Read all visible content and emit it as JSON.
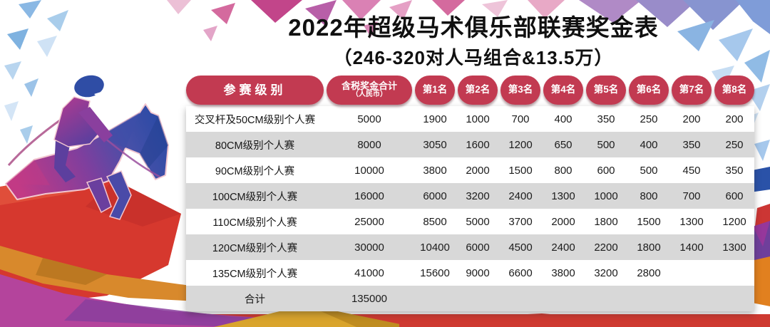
{
  "title": "2022年超级马术俱乐部联赛奖金表",
  "subtitle": "（246-320对人马组合&13.5万）",
  "table": {
    "headers": {
      "level": "参赛级别",
      "total_line1": "含税奖金合计",
      "total_line2": "（人民币）",
      "places": [
        "第1名",
        "第2名",
        "第3名",
        "第4名",
        "第5名",
        "第6名",
        "第7名",
        "第8名"
      ]
    },
    "rows": [
      {
        "level": "交叉杆及50CM级别个人赛",
        "total": "5000",
        "prizes": [
          "1900",
          "1000",
          "700",
          "400",
          "350",
          "250",
          "200",
          "200"
        ]
      },
      {
        "level": "80CM级别个人赛",
        "total": "8000",
        "prizes": [
          "3050",
          "1600",
          "1200",
          "650",
          "500",
          "400",
          "350",
          "250"
        ]
      },
      {
        "level": "90CM级别个人赛",
        "total": "10000",
        "prizes": [
          "3800",
          "2000",
          "1500",
          "800",
          "600",
          "500",
          "450",
          "350"
        ]
      },
      {
        "level": "100CM级别个人赛",
        "total": "16000",
        "prizes": [
          "6000",
          "3200",
          "2400",
          "1300",
          "1000",
          "800",
          "700",
          "600"
        ]
      },
      {
        "level": "110CM级别个人赛",
        "total": "25000",
        "prizes": [
          "8500",
          "5000",
          "3700",
          "2000",
          "1800",
          "1500",
          "1300",
          "1200"
        ]
      },
      {
        "level": "120CM级别个人赛",
        "total": "30000",
        "prizes": [
          "10400",
          "6000",
          "4500",
          "2400",
          "2200",
          "1800",
          "1400",
          "1300"
        ]
      },
      {
        "level": "135CM级别个人赛",
        "total": "41000",
        "prizes": [
          "15600",
          "9000",
          "6600",
          "3800",
          "3200",
          "2800",
          "",
          ""
        ]
      },
      {
        "level": "合计",
        "total": "135000",
        "prizes": [
          "",
          "",
          "",
          "",
          "",
          "",
          "",
          ""
        ]
      }
    ]
  },
  "colors": {
    "pill_red": "#c23a51",
    "row_alt_gray": "#d8d8d8",
    "title_black": "#101010",
    "banner_red": "#ce3a31"
  },
  "decor": {
    "horse_illustration": "low-poly jumping horse with rider",
    "confetti": "pink, purple and blue triangle confetti",
    "ribbon": "red, orange, magenta and gold polygonal waves"
  }
}
